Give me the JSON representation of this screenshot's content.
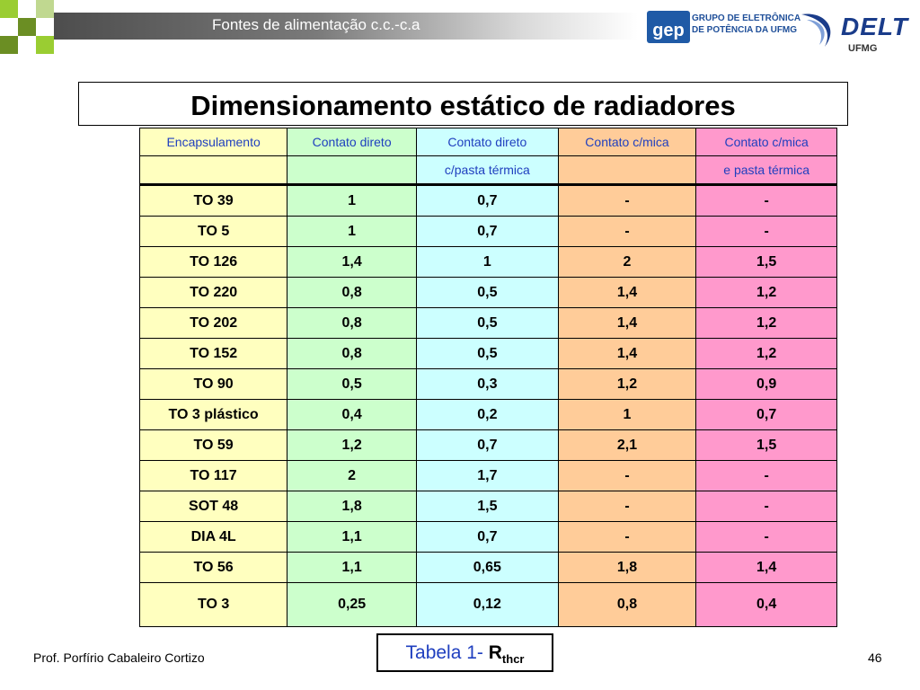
{
  "header": {
    "title": "Fontes de alimentação c.c.-c.a",
    "logo_gep_text": "gep",
    "logo_gep_line1": "GRUPO DE ELETRÔNICA",
    "logo_gep_line2": "DE POTÊNCIA DA UFMG",
    "logo_delt_text": "DELT",
    "logo_ufmg_text": "UFMG",
    "accent_squares": [
      "#9acd32",
      "#6b8e23",
      "#c0d890"
    ]
  },
  "slide": {
    "title": "Dimensionamento estático de radiadores"
  },
  "table": {
    "header_row1": [
      "Encapsulamento",
      "Contato direto",
      "Contato direto",
      "Contato c/mica",
      "Contato c/mica"
    ],
    "header_row2": [
      "",
      "",
      "c/pasta térmica",
      "",
      "e pasta térmica"
    ],
    "rows": [
      [
        "TO 39",
        "1",
        "0,7",
        "-",
        "-"
      ],
      [
        "TO 5",
        "1",
        "0,7",
        "-",
        "-"
      ],
      [
        "TO 126",
        "1,4",
        "1",
        "2",
        "1,5"
      ],
      [
        "TO 220",
        "0,8",
        "0,5",
        "1,4",
        "1,2"
      ],
      [
        "TO 202",
        "0,8",
        "0,5",
        "1,4",
        "1,2"
      ],
      [
        "TO 152",
        "0,8",
        "0,5",
        "1,4",
        "1,2"
      ],
      [
        "TO 90",
        "0,5",
        "0,3",
        "1,2",
        "0,9"
      ],
      [
        "TO 3 plástico",
        "0,4",
        "0,2",
        "1",
        "0,7"
      ],
      [
        "TO 59",
        "1,2",
        "0,7",
        "2,1",
        "1,5"
      ],
      [
        "TO 117",
        "2",
        "1,7",
        "-",
        "-"
      ],
      [
        "SOT 48",
        "1,8",
        "1,5",
        "-",
        "-"
      ],
      [
        "DIA 4L",
        "1,1",
        "0,7",
        "-",
        "-"
      ],
      [
        "TO 56",
        "1,1",
        "0,65",
        "1,8",
        "1,4"
      ],
      [
        "TO 3",
        "0,25",
        "0,12",
        "0,8",
        "0,4"
      ]
    ],
    "column_colors": [
      "#ffffbf",
      "#ccffcc",
      "#ccffff",
      "#ffcc99",
      "#ff99cc"
    ]
  },
  "caption": {
    "prefix": "Tabela 1- ",
    "symbol": "R",
    "subscript": "thcr"
  },
  "footer": {
    "author": "Prof. Porfírio Cabaleiro Cortizo",
    "page_number": "46"
  }
}
